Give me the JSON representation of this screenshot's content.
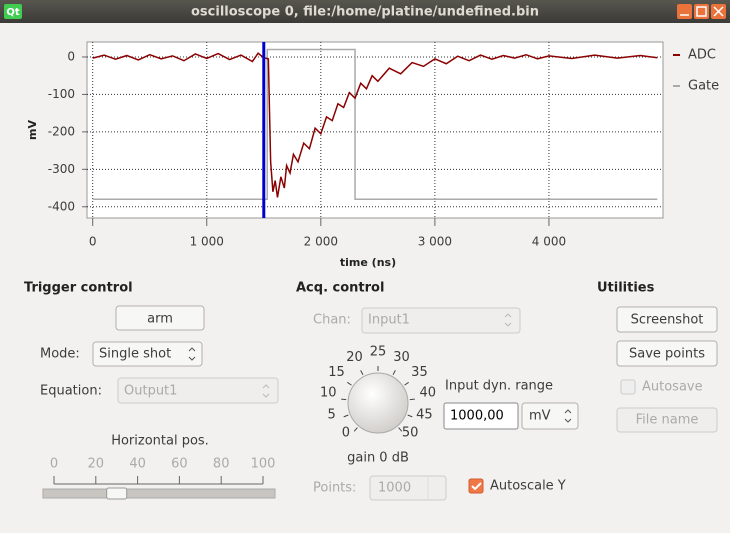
{
  "window": {
    "icon": "Qt",
    "title": "oscilloscope 0, file:/home/platine/undefined.bin"
  },
  "chart_data": {
    "type": "line",
    "xlabel": "time (ns)",
    "ylabel": "mV",
    "xlim": [
      -50,
      5000
    ],
    "ylim": [
      -430,
      40
    ],
    "xticks": [
      0,
      {
        "value": 1000,
        "label": "1 000"
      },
      {
        "value": 2000,
        "label": "2 000"
      },
      {
        "value": 3000,
        "label": "3 000"
      },
      {
        "value": 4000,
        "label": "4 000"
      }
    ],
    "yticks": [
      0,
      -100,
      -200,
      -300,
      -400
    ],
    "grid": true,
    "legend": "outside-right",
    "markers": [
      {
        "x": 1500,
        "color": "#0000cc"
      }
    ],
    "series": [
      {
        "name": "ADC",
        "color": "#8b0000",
        "x": [
          0,
          100,
          200,
          300,
          400,
          500,
          600,
          700,
          800,
          900,
          1000,
          1100,
          1200,
          1300,
          1400,
          1450,
          1500,
          1540,
          1560,
          1580,
          1600,
          1620,
          1650,
          1680,
          1700,
          1730,
          1760,
          1800,
          1850,
          1900,
          1950,
          2000,
          2050,
          2100,
          2150,
          2200,
          2250,
          2300,
          2350,
          2400,
          2450,
          2500,
          2600,
          2700,
          2800,
          2900,
          3000,
          3100,
          3200,
          3300,
          3400,
          3500,
          3600,
          3700,
          3800,
          3900,
          4000,
          4200,
          4400,
          4600,
          4800,
          4950
        ],
        "values": [
          -3,
          5,
          -6,
          4,
          -8,
          6,
          -5,
          3,
          -10,
          8,
          -4,
          9,
          -7,
          5,
          -12,
          10,
          -2,
          -5,
          -280,
          -360,
          -330,
          -375,
          -320,
          -350,
          -290,
          -310,
          -260,
          -280,
          -230,
          -245,
          -190,
          -205,
          -160,
          -170,
          -125,
          -135,
          -95,
          -110,
          -70,
          -85,
          -50,
          -65,
          -30,
          -45,
          -15,
          -25,
          -5,
          -18,
          2,
          -10,
          5,
          -6,
          4,
          -3,
          6,
          -5,
          3,
          -4,
          5,
          -3,
          4,
          -2
        ]
      },
      {
        "name": "Gate",
        "color": "#aaaaaa",
        "x": [
          0,
          1530,
          1530,
          2300,
          2300,
          4950
        ],
        "values": [
          -380,
          -380,
          20,
          20,
          -380,
          -380
        ]
      }
    ]
  },
  "trigger": {
    "title": "Trigger control",
    "arm": "arm",
    "mode_label": "Mode:",
    "mode": "Single shot",
    "equation_label": "Equation:",
    "equation": "Output1",
    "hpos": {
      "label": "Horizontal pos.",
      "ticks": [
        0,
        20,
        40,
        60,
        80,
        100
      ],
      "value": 30
    }
  },
  "acq": {
    "title": "Acq. control",
    "chan_label": "Chan:",
    "chan": "Input1",
    "gain": {
      "ticks": [
        0,
        5,
        10,
        15,
        20,
        25,
        30,
        35,
        40,
        45,
        50
      ],
      "label": "gain 0 dB"
    },
    "range_label": "Input dyn. range",
    "range": "1000,00",
    "unit": "mV",
    "points_label": "Points:",
    "points": "1000",
    "autoscale": "Autoscale Y"
  },
  "utilities": {
    "title": "Utilities",
    "screenshot": "Screenshot",
    "save": "Save points",
    "autosave": "Autosave",
    "file": "File name"
  }
}
